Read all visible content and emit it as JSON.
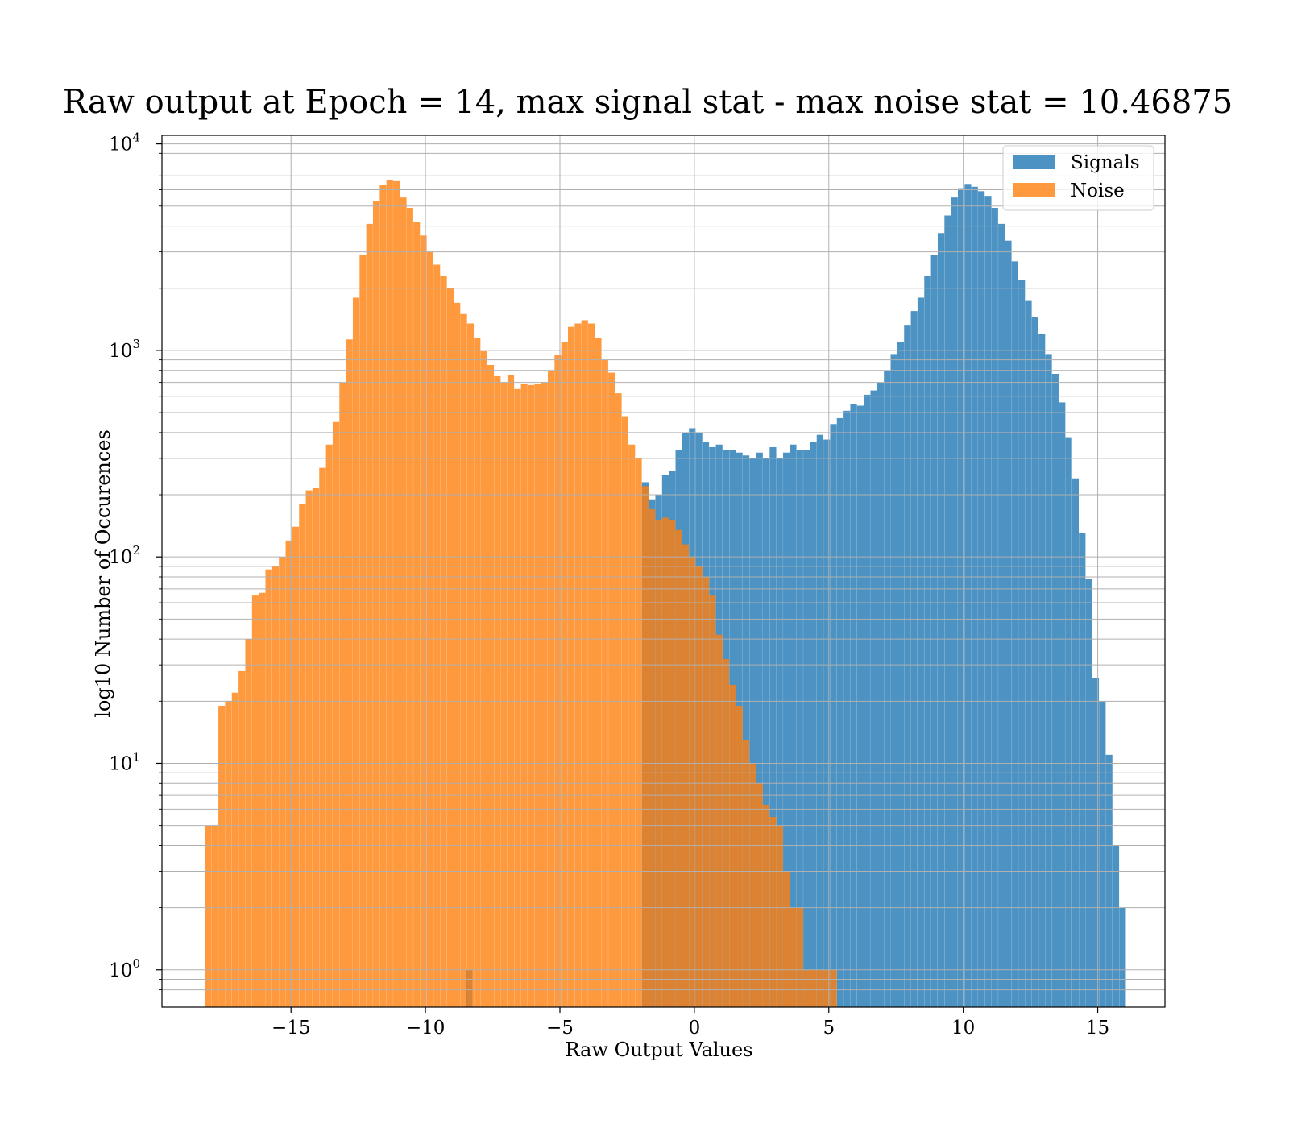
{
  "chart_data": {
    "type": "histogram",
    "title": "Raw output at Epoch = 14, max signal stat - max noise stat = 10.46875",
    "xlabel": "Raw Output Values",
    "ylabel": "log10 Number of Occurences",
    "xlim": [
      -19.8,
      17.5
    ],
    "ylim": [
      0.66,
      11000
    ],
    "y_scale": "log",
    "x_ticks": [
      -15,
      -10,
      -5,
      0,
      5,
      10,
      15
    ],
    "x_tick_labels": [
      "−15",
      "−10",
      "−5",
      "0",
      "5",
      "10",
      "15"
    ],
    "y_ticks": [
      {
        "value": 1,
        "base": "10",
        "exp": "0"
      },
      {
        "value": 10,
        "base": "10",
        "exp": "1"
      },
      {
        "value": 100,
        "base": "10",
        "exp": "2"
      },
      {
        "value": 1000,
        "base": "10",
        "exp": "3"
      },
      {
        "value": 10000,
        "base": "10",
        "exp": "4"
      }
    ],
    "grid": true,
    "legend_position": "top-right",
    "series": [
      {
        "name": "Signals",
        "color": "#1f77b4",
        "alpha": 0.8,
        "bin_width": 0.245,
        "bins": [
          [
            -8.5,
            1
          ],
          [
            -1.95,
            230
          ],
          [
            -1.7,
            190
          ],
          [
            -1.45,
            200
          ],
          [
            -1.2,
            250
          ],
          [
            -0.95,
            260
          ],
          [
            -0.7,
            330
          ],
          [
            -0.45,
            400
          ],
          [
            -0.2,
            420
          ],
          [
            0.05,
            400
          ],
          [
            0.3,
            360
          ],
          [
            0.55,
            340
          ],
          [
            0.8,
            350
          ],
          [
            1.05,
            330
          ],
          [
            1.3,
            330
          ],
          [
            1.55,
            320
          ],
          [
            1.8,
            310
          ],
          [
            2.05,
            300
          ],
          [
            2.3,
            320
          ],
          [
            2.55,
            300
          ],
          [
            2.8,
            340
          ],
          [
            3.05,
            300
          ],
          [
            3.3,
            320
          ],
          [
            3.55,
            350
          ],
          [
            3.8,
            330
          ],
          [
            4.05,
            330
          ],
          [
            4.3,
            360
          ],
          [
            4.55,
            390
          ],
          [
            4.8,
            370
          ],
          [
            5.05,
            440
          ],
          [
            5.3,
            470
          ],
          [
            5.55,
            510
          ],
          [
            5.8,
            550
          ],
          [
            6.05,
            540
          ],
          [
            6.3,
            610
          ],
          [
            6.55,
            640
          ],
          [
            6.8,
            700
          ],
          [
            7.05,
            800
          ],
          [
            7.3,
            960
          ],
          [
            7.55,
            1100
          ],
          [
            7.8,
            1330
          ],
          [
            8.05,
            1550
          ],
          [
            8.3,
            1800
          ],
          [
            8.55,
            2300
          ],
          [
            8.8,
            2900
          ],
          [
            9.05,
            3700
          ],
          [
            9.3,
            4500
          ],
          [
            9.55,
            5500
          ],
          [
            9.8,
            6100
          ],
          [
            10.05,
            6400
          ],
          [
            10.3,
            6200
          ],
          [
            10.55,
            5900
          ],
          [
            10.8,
            5600
          ],
          [
            11.05,
            4900
          ],
          [
            11.3,
            4100
          ],
          [
            11.55,
            3400
          ],
          [
            11.8,
            2700
          ],
          [
            12.05,
            2200
          ],
          [
            12.3,
            1750
          ],
          [
            12.55,
            1450
          ],
          [
            12.8,
            1200
          ],
          [
            13.05,
            960
          ],
          [
            13.3,
            770
          ],
          [
            13.55,
            560
          ],
          [
            13.8,
            380
          ],
          [
            14.05,
            240
          ],
          [
            14.3,
            130
          ],
          [
            14.55,
            78
          ],
          [
            14.8,
            26
          ],
          [
            15.05,
            20
          ],
          [
            15.3,
            11
          ],
          [
            15.55,
            4
          ],
          [
            15.8,
            2
          ]
        ]
      },
      {
        "name": "Noise",
        "color": "#ff7f0e",
        "alpha": 0.8,
        "bin_width": 0.245,
        "bins": [
          [
            -18.2,
            5
          ],
          [
            -17.95,
            5
          ],
          [
            -17.7,
            19
          ],
          [
            -17.45,
            20
          ],
          [
            -17.2,
            22
          ],
          [
            -16.95,
            28
          ],
          [
            -16.7,
            40
          ],
          [
            -16.45,
            65
          ],
          [
            -16.2,
            67
          ],
          [
            -15.95,
            87
          ],
          [
            -15.7,
            90
          ],
          [
            -15.45,
            100
          ],
          [
            -15.2,
            120
          ],
          [
            -14.95,
            140
          ],
          [
            -14.7,
            180
          ],
          [
            -14.45,
            210
          ],
          [
            -14.2,
            215
          ],
          [
            -13.95,
            270
          ],
          [
            -13.7,
            350
          ],
          [
            -13.45,
            450
          ],
          [
            -13.2,
            700
          ],
          [
            -12.95,
            1130
          ],
          [
            -12.7,
            1800
          ],
          [
            -12.45,
            2900
          ],
          [
            -12.2,
            4100
          ],
          [
            -11.95,
            5300
          ],
          [
            -11.7,
            6300
          ],
          [
            -11.45,
            6700
          ],
          [
            -11.2,
            6600
          ],
          [
            -10.95,
            5500
          ],
          [
            -10.7,
            4900
          ],
          [
            -10.45,
            4200
          ],
          [
            -10.2,
            3600
          ],
          [
            -9.95,
            3000
          ],
          [
            -9.7,
            2600
          ],
          [
            -9.45,
            2300
          ],
          [
            -9.2,
            2000
          ],
          [
            -8.95,
            1700
          ],
          [
            -8.7,
            1500
          ],
          [
            -8.45,
            1350
          ],
          [
            -8.2,
            1150
          ],
          [
            -7.95,
            990
          ],
          [
            -7.7,
            850
          ],
          [
            -7.45,
            750
          ],
          [
            -7.2,
            700
          ],
          [
            -6.95,
            760
          ],
          [
            -6.7,
            650
          ],
          [
            -6.45,
            690
          ],
          [
            -6.2,
            680
          ],
          [
            -5.95,
            690
          ],
          [
            -5.7,
            700
          ],
          [
            -5.45,
            800
          ],
          [
            -5.2,
            950
          ],
          [
            -4.95,
            1100
          ],
          [
            -4.7,
            1300
          ],
          [
            -4.45,
            1350
          ],
          [
            -4.2,
            1400
          ],
          [
            -3.95,
            1350
          ],
          [
            -3.7,
            1150
          ],
          [
            -3.45,
            900
          ],
          [
            -3.2,
            780
          ],
          [
            -2.95,
            620
          ],
          [
            -2.7,
            480
          ],
          [
            -2.45,
            350
          ],
          [
            -2.2,
            300
          ],
          [
            -1.95,
            220
          ],
          [
            -1.7,
            170
          ],
          [
            -1.45,
            150
          ],
          [
            -1.2,
            155
          ],
          [
            -0.95,
            150
          ],
          [
            -0.7,
            135
          ],
          [
            -0.45,
            115
          ],
          [
            -0.2,
            100
          ],
          [
            0.05,
            90
          ],
          [
            0.3,
            80
          ],
          [
            0.55,
            65
          ],
          [
            0.8,
            42
          ],
          [
            1.05,
            32
          ],
          [
            1.3,
            24
          ],
          [
            1.55,
            19
          ],
          [
            1.8,
            13
          ],
          [
            2.05,
            10
          ],
          [
            2.3,
            8
          ],
          [
            2.55,
            6.3
          ],
          [
            2.8,
            5.5
          ],
          [
            3.05,
            5
          ],
          [
            3.3,
            3
          ],
          [
            3.55,
            2
          ],
          [
            3.8,
            2
          ],
          [
            4.05,
            1
          ],
          [
            4.3,
            1
          ],
          [
            4.55,
            1
          ],
          [
            4.8,
            1
          ],
          [
            5.05,
            1
          ]
        ]
      }
    ]
  }
}
